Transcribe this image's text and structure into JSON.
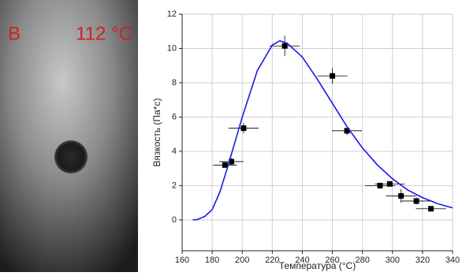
{
  "photo": {
    "label": "B",
    "temperature": "112 °C"
  },
  "chart_data": {
    "type": "scatter",
    "xlabel": "Температура (°C)",
    "ylabel": "Вязкость (Па*с)",
    "xlim": [
      160,
      340
    ],
    "ylim": [
      -1.8,
      12
    ],
    "xticks": [
      160,
      180,
      200,
      220,
      240,
      260,
      280,
      300,
      320,
      340
    ],
    "yticks": [
      0,
      2,
      4,
      6,
      8,
      10,
      12
    ],
    "grid": true,
    "series": [
      {
        "type": "scatter",
        "color": "#000000",
        "x": [
          188.5,
          192.8,
          200.9,
          228.3,
          260,
          269.7,
          291.7,
          298.2,
          305.7,
          315.9,
          325.6
        ],
        "values": [
          3.2,
          3.4,
          5.35,
          10.15,
          8.4,
          5.2,
          2.0,
          2.1,
          1.4,
          1.1,
          0.65
        ],
        "x_err": [
          8,
          8,
          10,
          10,
          10,
          10,
          10,
          10,
          10,
          10,
          10
        ],
        "y_err": [
          0.15,
          0.2,
          0.3,
          0.6,
          0.45,
          0.25,
          0.15,
          0.15,
          0.4,
          0.2,
          0.15
        ]
      },
      {
        "type": "line",
        "color": "#1a1ae6",
        "x": [
          167,
          170,
          175,
          180,
          185,
          190,
          195,
          200,
          210,
          220,
          225,
          230,
          240,
          250,
          260,
          270,
          280,
          290,
          300,
          310,
          320,
          330,
          340
        ],
        "values": [
          0,
          0.02,
          0.2,
          0.6,
          1.6,
          3.0,
          4.5,
          6.0,
          8.7,
          10.2,
          10.45,
          10.3,
          9.5,
          8.2,
          6.8,
          5.4,
          4.2,
          3.2,
          2.4,
          1.75,
          1.3,
          0.95,
          0.7
        ]
      }
    ]
  }
}
